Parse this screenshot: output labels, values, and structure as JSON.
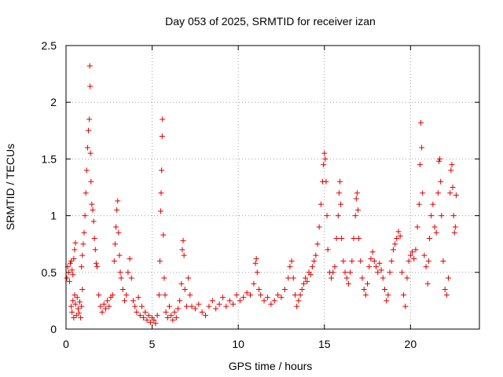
{
  "chart_data": {
    "type": "scatter",
    "title": "Day 053 of 2025, SRMTID for receiver izan",
    "xlabel": "GPS time / hours",
    "ylabel": "SRMTID / TECUs",
    "xlim": [
      0,
      24
    ],
    "ylim": [
      0,
      2.5
    ],
    "x_ticks": [
      "0",
      "5",
      "10",
      "15",
      "20"
    ],
    "y_ticks": [
      "0",
      "0.5",
      "1",
      "1.5",
      "2",
      "2.5"
    ],
    "grid": true,
    "marker": "+",
    "series_color": "#e00000",
    "series": [
      {
        "name": "SRMTID",
        "points": [
          [
            0.05,
            0.45
          ],
          [
            0.1,
            0.55
          ],
          [
            0.15,
            0.5
          ],
          [
            0.2,
            0.42
          ],
          [
            0.25,
            0.58
          ],
          [
            0.3,
            0.6
          ],
          [
            0.35,
            0.52
          ],
          [
            0.4,
            0.48
          ],
          [
            0.45,
            0.62
          ],
          [
            0.5,
            0.7
          ],
          [
            0.55,
            0.76
          ],
          [
            0.3,
            0.2
          ],
          [
            0.35,
            0.15
          ],
          [
            0.4,
            0.25
          ],
          [
            0.45,
            0.1
          ],
          [
            0.5,
            0.3
          ],
          [
            0.55,
            0.22
          ],
          [
            0.6,
            0.12
          ],
          [
            0.65,
            0.28
          ],
          [
            0.7,
            0.18
          ],
          [
            0.75,
            0.14
          ],
          [
            0.8,
            0.24
          ],
          [
            0.85,
            0.1
          ],
          [
            0.9,
            0.2
          ],
          [
            0.95,
            0.35
          ],
          [
            0.9,
            0.55
          ],
          [
            0.95,
            0.65
          ],
          [
            1.0,
            0.75
          ],
          [
            1.05,
            0.85
          ],
          [
            1.1,
            1.0
          ],
          [
            1.15,
            1.2
          ],
          [
            1.2,
            1.4
          ],
          [
            1.25,
            1.6
          ],
          [
            1.3,
            1.75
          ],
          [
            1.35,
            1.85
          ],
          [
            1.38,
            2.32
          ],
          [
            1.4,
            2.14
          ],
          [
            1.42,
            1.55
          ],
          [
            1.45,
            1.3
          ],
          [
            1.5,
            1.1
          ],
          [
            1.55,
            1.05
          ],
          [
            1.6,
            0.95
          ],
          [
            1.65,
            0.8
          ],
          [
            1.7,
            0.7
          ],
          [
            1.75,
            0.58
          ],
          [
            1.8,
            0.55
          ],
          [
            1.9,
            0.3
          ],
          [
            2.0,
            0.2
          ],
          [
            2.1,
            0.15
          ],
          [
            2.2,
            0.22
          ],
          [
            2.3,
            0.18
          ],
          [
            2.4,
            0.25
          ],
          [
            2.5,
            0.2
          ],
          [
            2.6,
            0.28
          ],
          [
            2.7,
            0.3
          ],
          [
            2.8,
            0.6
          ],
          [
            2.85,
            0.75
          ],
          [
            2.9,
            0.9
          ],
          [
            2.95,
            1.05
          ],
          [
            3.0,
            1.13
          ],
          [
            3.05,
            0.85
          ],
          [
            3.1,
            0.65
          ],
          [
            3.15,
            0.5
          ],
          [
            3.2,
            0.45
          ],
          [
            3.3,
            0.35
          ],
          [
            3.4,
            0.25
          ],
          [
            3.5,
            0.3
          ],
          [
            3.6,
            0.5
          ],
          [
            3.7,
            0.62
          ],
          [
            3.8,
            0.45
          ],
          [
            3.9,
            0.25
          ],
          [
            4.0,
            0.2
          ],
          [
            4.1,
            0.15
          ],
          [
            4.2,
            0.28
          ],
          [
            4.3,
            0.12
          ],
          [
            4.4,
            0.2
          ],
          [
            4.5,
            0.1
          ],
          [
            4.6,
            0.15
          ],
          [
            4.7,
            0.08
          ],
          [
            4.8,
            0.12
          ],
          [
            4.9,
            0.06
          ],
          [
            5.0,
            0.1
          ],
          [
            5.1,
            0.08
          ],
          [
            5.2,
            0.05
          ],
          [
            5.3,
            0.12
          ],
          [
            5.4,
            0.3
          ],
          [
            5.45,
            0.6
          ],
          [
            5.5,
            1.04
          ],
          [
            5.52,
            1.2
          ],
          [
            5.55,
            1.4
          ],
          [
            5.58,
            1.7
          ],
          [
            5.6,
            1.85
          ],
          [
            5.65,
            0.83
          ],
          [
            5.7,
            0.45
          ],
          [
            5.75,
            0.3
          ],
          [
            5.8,
            0.15
          ],
          [
            5.9,
            0.1
          ],
          [
            6.0,
            0.2
          ],
          [
            6.1,
            0.12
          ],
          [
            6.2,
            0.08
          ],
          [
            6.3,
            0.15
          ],
          [
            6.4,
            0.1
          ],
          [
            6.5,
            0.18
          ],
          [
            6.6,
            0.25
          ],
          [
            6.7,
            0.4
          ],
          [
            6.75,
            0.7
          ],
          [
            6.8,
            0.78
          ],
          [
            6.85,
            0.65
          ],
          [
            6.9,
            0.35
          ],
          [
            7.0,
            0.2
          ],
          [
            7.1,
            0.45
          ],
          [
            7.2,
            0.3
          ],
          [
            7.3,
            0.2
          ],
          [
            7.5,
            0.18
          ],
          [
            7.7,
            0.22
          ],
          [
            7.9,
            0.15
          ],
          [
            8.1,
            0.12
          ],
          [
            8.3,
            0.2
          ],
          [
            8.5,
            0.25
          ],
          [
            8.7,
            0.18
          ],
          [
            8.9,
            0.22
          ],
          [
            9.1,
            0.28
          ],
          [
            9.3,
            0.2
          ],
          [
            9.5,
            0.25
          ],
          [
            9.7,
            0.22
          ],
          [
            9.9,
            0.3
          ],
          [
            10.1,
            0.25
          ],
          [
            10.3,
            0.28
          ],
          [
            10.5,
            0.32
          ],
          [
            10.7,
            0.3
          ],
          [
            10.9,
            0.4
          ],
          [
            11.0,
            0.58
          ],
          [
            11.05,
            0.62
          ],
          [
            11.1,
            0.5
          ],
          [
            11.2,
            0.35
          ],
          [
            11.3,
            0.3
          ],
          [
            11.5,
            0.25
          ],
          [
            11.7,
            0.28
          ],
          [
            11.9,
            0.22
          ],
          [
            12.1,
            0.25
          ],
          [
            12.3,
            0.3
          ],
          [
            12.5,
            0.28
          ],
          [
            12.7,
            0.35
          ],
          [
            12.9,
            0.45
          ],
          [
            13.0,
            0.55
          ],
          [
            13.1,
            0.6
          ],
          [
            13.2,
            0.45
          ],
          [
            13.3,
            0.3
          ],
          [
            13.4,
            0.2
          ],
          [
            13.5,
            0.25
          ],
          [
            13.6,
            0.3
          ],
          [
            13.7,
            0.35
          ],
          [
            13.8,
            0.4
          ],
          [
            13.9,
            0.45
          ],
          [
            14.0,
            0.42
          ],
          [
            14.1,
            0.5
          ],
          [
            14.2,
            0.48
          ],
          [
            14.3,
            0.55
          ],
          [
            14.4,
            0.6
          ],
          [
            14.5,
            0.65
          ],
          [
            14.6,
            0.75
          ],
          [
            14.7,
            0.9
          ],
          [
            14.8,
            1.1
          ],
          [
            14.9,
            1.3
          ],
          [
            14.95,
            1.45
          ],
          [
            15.0,
            1.55
          ],
          [
            15.05,
            1.5
          ],
          [
            15.1,
            1.3
          ],
          [
            15.15,
            1.0
          ],
          [
            15.2,
            0.7
          ],
          [
            15.3,
            0.5
          ],
          [
            15.4,
            0.45
          ],
          [
            15.5,
            0.5
          ],
          [
            15.6,
            0.55
          ],
          [
            15.7,
            0.8
          ],
          [
            15.8,
            1.0
          ],
          [
            15.85,
            1.2
          ],
          [
            15.9,
            1.3
          ],
          [
            15.95,
            1.1
          ],
          [
            16.0,
            0.8
          ],
          [
            16.1,
            0.6
          ],
          [
            16.2,
            0.5
          ],
          [
            16.3,
            0.45
          ],
          [
            16.4,
            0.4
          ],
          [
            16.5,
            0.5
          ],
          [
            16.6,
            0.6
          ],
          [
            16.7,
            0.8
          ],
          [
            16.8,
            1.0
          ],
          [
            16.85,
            1.15
          ],
          [
            16.9,
            1.2
          ],
          [
            16.95,
            1.05
          ],
          [
            17.0,
            0.8
          ],
          [
            17.1,
            0.6
          ],
          [
            17.2,
            0.45
          ],
          [
            17.3,
            0.35
          ],
          [
            17.4,
            0.3
          ],
          [
            17.5,
            0.4
          ],
          [
            17.6,
            0.55
          ],
          [
            17.7,
            0.62
          ],
          [
            17.8,
            0.68
          ],
          [
            17.9,
            0.6
          ],
          [
            18.0,
            0.55
          ],
          [
            18.1,
            0.5
          ],
          [
            18.2,
            0.58
          ],
          [
            18.3,
            0.52
          ],
          [
            18.4,
            0.45
          ],
          [
            18.5,
            0.35
          ],
          [
            18.6,
            0.25
          ],
          [
            18.7,
            0.3
          ],
          [
            18.8,
            0.5
          ],
          [
            18.9,
            0.6
          ],
          [
            19.0,
            0.7
          ],
          [
            19.1,
            0.75
          ],
          [
            19.2,
            0.8
          ],
          [
            19.3,
            0.86
          ],
          [
            19.4,
            0.82
          ],
          [
            19.5,
            0.5
          ],
          [
            19.6,
            0.3
          ],
          [
            19.7,
            0.2
          ],
          [
            19.8,
            0.45
          ],
          [
            19.9,
            0.6
          ],
          [
            20.0,
            0.65
          ],
          [
            20.1,
            0.68
          ],
          [
            20.2,
            0.62
          ],
          [
            20.3,
            0.7
          ],
          [
            20.4,
            0.9
          ],
          [
            20.5,
            1.1
          ],
          [
            20.55,
            1.45
          ],
          [
            20.6,
            1.82
          ],
          [
            20.65,
            1.6
          ],
          [
            20.7,
            1.2
          ],
          [
            20.8,
            0.65
          ],
          [
            20.9,
            0.55
          ],
          [
            21.0,
            0.4
          ],
          [
            21.05,
            0.6
          ],
          [
            21.1,
            0.8
          ],
          [
            21.2,
            1.0
          ],
          [
            21.3,
            1.1
          ],
          [
            21.4,
            0.9
          ],
          [
            21.5,
            0.85
          ],
          [
            21.6,
            1.2
          ],
          [
            21.65,
            1.48
          ],
          [
            21.7,
            1.5
          ],
          [
            21.75,
            1.3
          ],
          [
            21.8,
            1.0
          ],
          [
            21.9,
            0.6
          ],
          [
            22.0,
            0.35
          ],
          [
            22.1,
            0.3
          ],
          [
            22.2,
            0.45
          ],
          [
            22.3,
            1.2
          ],
          [
            22.35,
            1.4
          ],
          [
            22.4,
            1.45
          ],
          [
            22.45,
            1.25
          ],
          [
            22.5,
            1.0
          ],
          [
            22.55,
            0.85
          ],
          [
            22.6,
            0.9
          ],
          [
            22.65,
            1.18
          ]
        ]
      }
    ]
  }
}
